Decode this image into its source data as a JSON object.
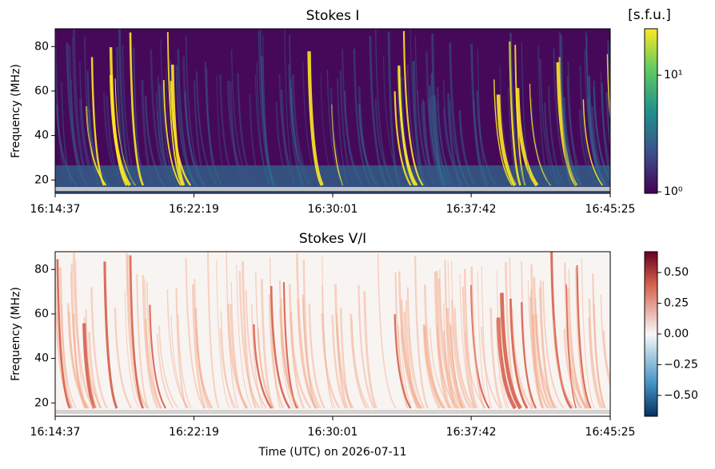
{
  "chart_data": [
    {
      "type": "heatmap",
      "title": "Stokes I",
      "ylabel": "Frequency (MHz)",
      "xlim": [
        "16:14:37",
        "16:45:25"
      ],
      "xticks": [
        "16:14:37",
        "16:22:19",
        "16:30:01",
        "16:37:42",
        "16:45:25"
      ],
      "ylim": [
        14,
        88
      ],
      "yticks": [
        20,
        40,
        60,
        80
      ],
      "colorbar": {
        "label": "[s.f.u.]",
        "cmap": "viridis",
        "scale": "log",
        "clim": [
          0.97,
          25
        ],
        "ticks": [
          {
            "value": 1,
            "label": "10⁰"
          },
          {
            "value": 10,
            "label": "10¹"
          }
        ]
      }
    },
    {
      "type": "heatmap",
      "title": "Stokes V/I",
      "ylabel": "Frequency (MHz)",
      "xlabel": "Time (UTC) on 2026-07-11",
      "xlim": [
        "16:14:37",
        "16:45:25"
      ],
      "xticks": [
        "16:14:37",
        "16:22:19",
        "16:30:01",
        "16:37:42",
        "16:45:25"
      ],
      "ylim": [
        14,
        88
      ],
      "yticks": [
        20,
        40,
        60,
        80
      ],
      "colorbar": {
        "cmap": "RdBu_r",
        "scale": "linear",
        "clim": [
          -0.67,
          0.67
        ],
        "ticks": [
          {
            "value": -0.5,
            "label": "−0.50"
          },
          {
            "value": -0.25,
            "label": "−0.25"
          },
          {
            "value": 0,
            "label": "0.00"
          },
          {
            "value": 0.25,
            "label": "0.25"
          },
          {
            "value": 0.5,
            "label": "0.50"
          }
        ]
      }
    }
  ]
}
